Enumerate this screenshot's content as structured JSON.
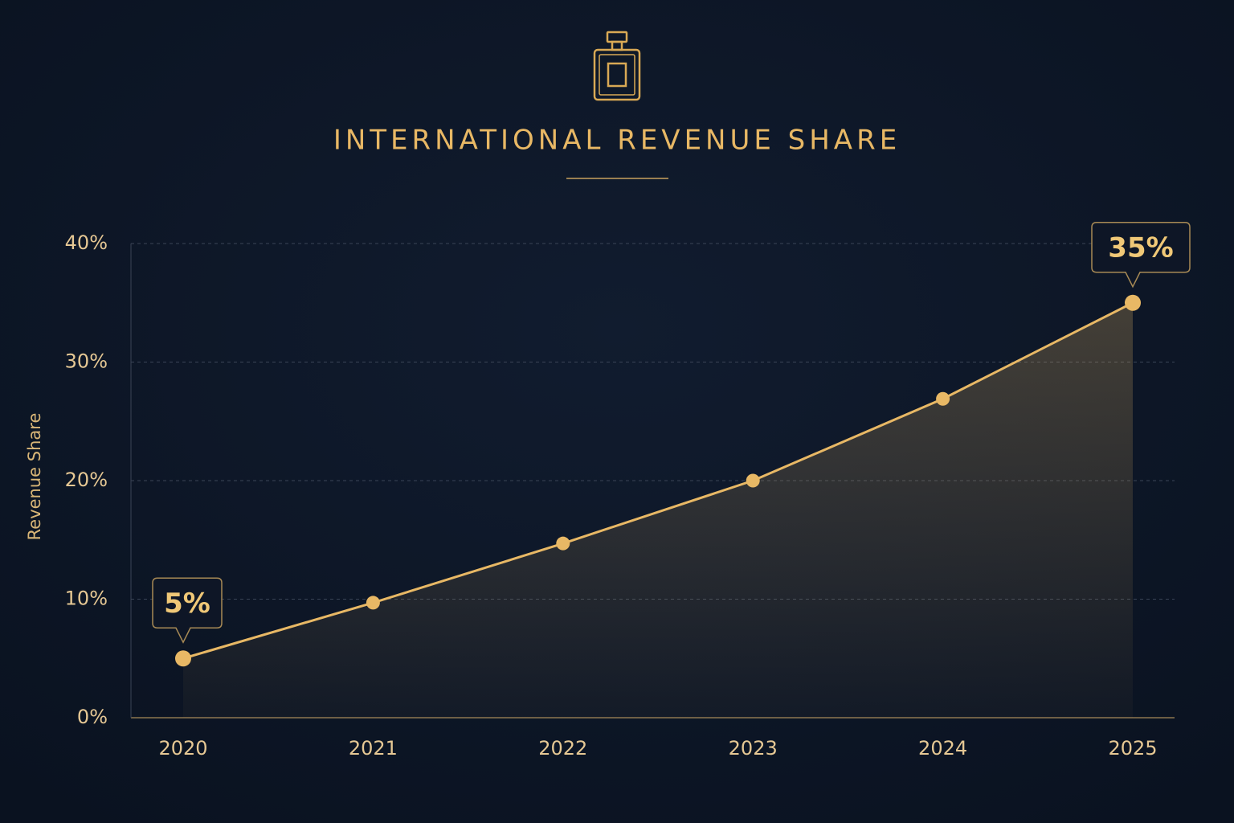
{
  "chart_data": {
    "type": "line",
    "title": "INTERNATIONAL REVENUE SHARE",
    "y_label": "Revenue Share",
    "categories": [
      "2020",
      "2021",
      "2022",
      "2023",
      "2024",
      "2025"
    ],
    "values": [
      5,
      9.7,
      14.7,
      20,
      26.9,
      35
    ],
    "value_labels": [
      "5%",
      null,
      null,
      null,
      null,
      "35%"
    ],
    "color": "#e8b865",
    "ylim": [
      0,
      40
    ],
    "yticks": [
      {
        "value": 0,
        "label": "0%"
      },
      {
        "value": 10,
        "label": "10%"
      },
      {
        "value": 20,
        "label": "20%"
      },
      {
        "value": 30,
        "label": "30%"
      },
      {
        "value": 40,
        "label": "40%"
      }
    ],
    "grid": true
  }
}
